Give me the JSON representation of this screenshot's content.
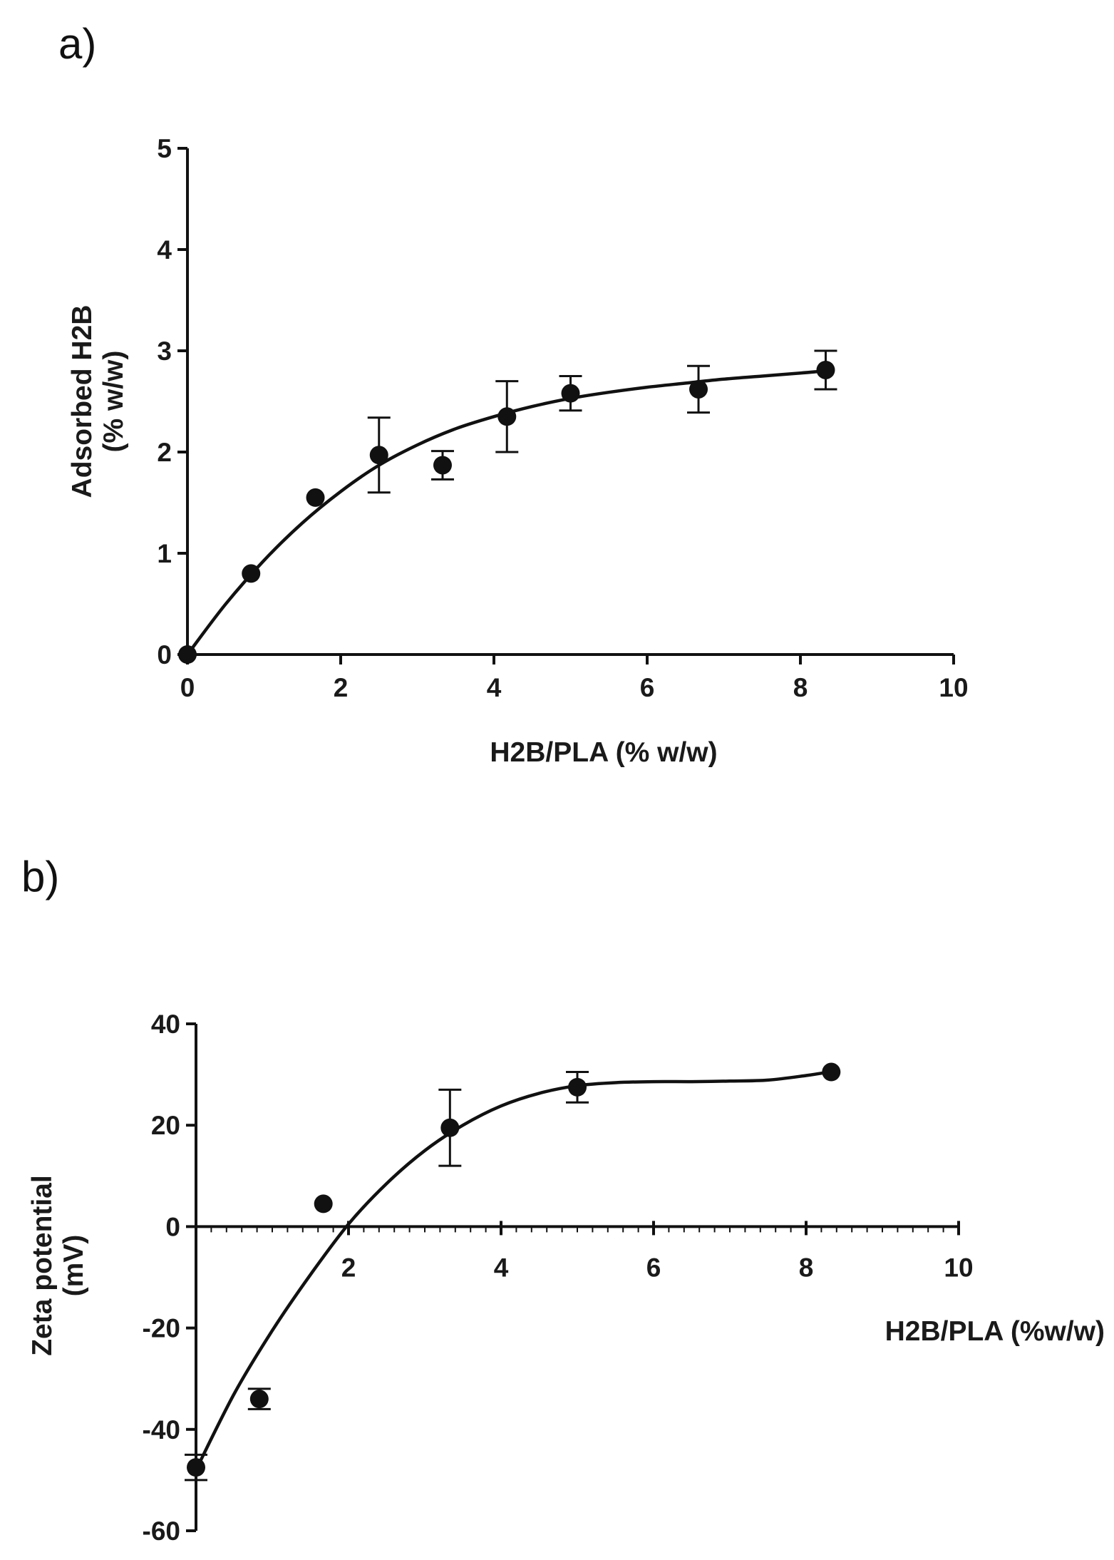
{
  "chart_data": [
    {
      "panel": "a)",
      "type": "scatter",
      "xlabel": "H2B/PLA (% w/w)",
      "ylabel_lines": [
        "Adsorbed H2B",
        "(% w/w)"
      ],
      "xlim": [
        0,
        10
      ],
      "ylim": [
        0,
        5
      ],
      "xticks": [
        "0",
        "2",
        "4",
        "6",
        "8",
        "10"
      ],
      "yticks": [
        "0",
        "1",
        "2",
        "3",
        "4",
        "5"
      ],
      "points": [
        {
          "x": 0,
          "y": 0,
          "err": 0
        },
        {
          "x": 0.83,
          "y": 0.8,
          "err": 0
        },
        {
          "x": 1.67,
          "y": 1.55,
          "err": 0
        },
        {
          "x": 2.5,
          "y": 1.97,
          "err": 0.37
        },
        {
          "x": 3.33,
          "y": 1.87,
          "err": 0.14
        },
        {
          "x": 4.17,
          "y": 2.35,
          "err": 0.35
        },
        {
          "x": 5.0,
          "y": 2.58,
          "err": 0.17
        },
        {
          "x": 6.67,
          "y": 2.62,
          "err": 0.23
        },
        {
          "x": 8.33,
          "y": 2.81,
          "err": 0.19
        }
      ],
      "fit_curve": {
        "x": [
          0,
          0.5,
          1,
          1.5,
          2,
          2.5,
          3,
          3.5,
          4,
          4.5,
          5,
          5.5,
          6,
          6.5,
          7,
          7.5,
          8,
          8.3
        ],
        "y": [
          0,
          0.5,
          0.93,
          1.3,
          1.61,
          1.87,
          2.07,
          2.23,
          2.35,
          2.45,
          2.53,
          2.59,
          2.64,
          2.68,
          2.72,
          2.75,
          2.78,
          2.8
        ]
      }
    },
    {
      "panel": "b)",
      "type": "scatter",
      "xlabel": "H2B/PLA (%w/w)",
      "ylabel_lines": [
        "Zeta potential",
        "(mV)"
      ],
      "xlim": [
        0,
        10
      ],
      "ylim": [
        -60,
        40
      ],
      "xticks": [
        "2",
        "4",
        "6",
        "8",
        "10"
      ],
      "yticks": [
        "-60",
        "-40",
        "-20",
        "0",
        "20",
        "40"
      ],
      "points": [
        {
          "x": 0,
          "y": -47.5,
          "err": 2.5
        },
        {
          "x": 0.83,
          "y": -34,
          "err": 2.0
        },
        {
          "x": 1.67,
          "y": 4.5,
          "err": 0
        },
        {
          "x": 3.33,
          "y": 19.5,
          "err": 7.5
        },
        {
          "x": 5.0,
          "y": 27.5,
          "err": 3.0
        },
        {
          "x": 8.33,
          "y": 30.5,
          "err": 0
        }
      ],
      "fit_curve": {
        "x": [
          0,
          0.5,
          1,
          1.5,
          2,
          2.5,
          3,
          3.5,
          4,
          4.5,
          5,
          5.5,
          6,
          6.5,
          7,
          7.5,
          8,
          8.3
        ],
        "y": [
          -48,
          -33,
          -20.5,
          -9.5,
          0.5,
          8.5,
          15,
          20,
          23.8,
          26.3,
          27.8,
          28.4,
          28.6,
          28.6,
          28.7,
          28.9,
          29.8,
          30.5
        ]
      }
    }
  ]
}
